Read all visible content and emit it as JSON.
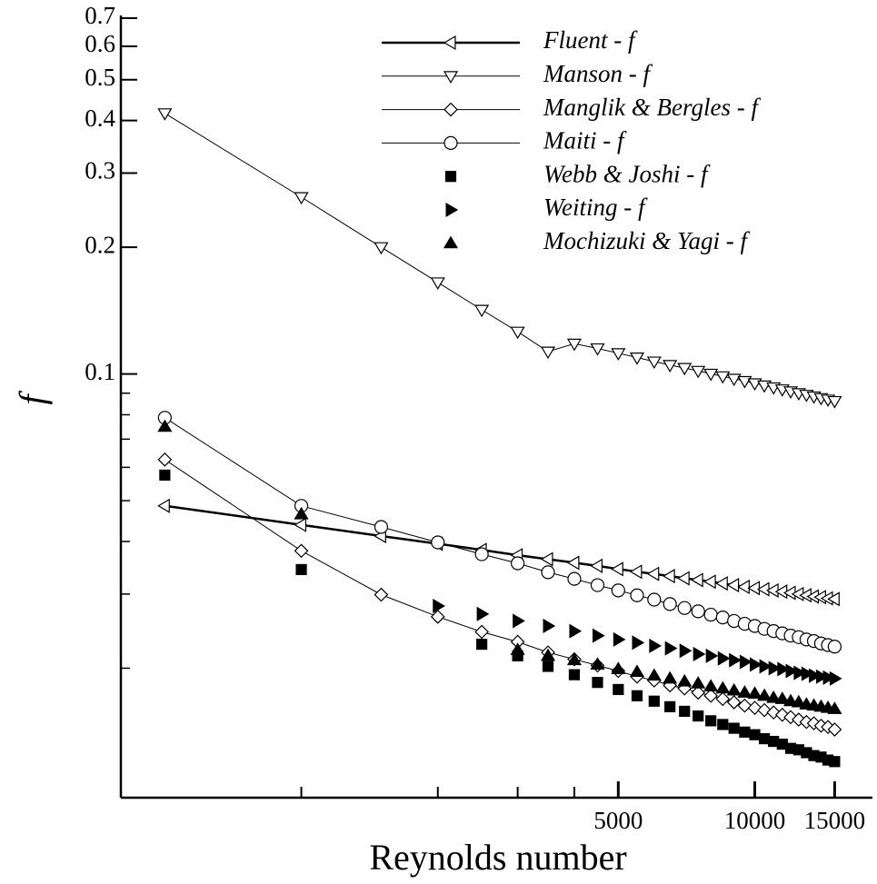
{
  "chart_data": {
    "type": "line",
    "x_scale": "log",
    "y_scale": "log",
    "xlabel": "Reynolds number",
    "ylabel": "f",
    "xlim": [
      400,
      18600
    ],
    "ylim": [
      0.00985,
      0.7
    ],
    "xticks": [
      5000,
      10000,
      15000
    ],
    "x_minor_ticks": [
      1000,
      2000,
      3000,
      4000
    ],
    "yticks": [
      0.1,
      0.2,
      0.3,
      0.4,
      0.5,
      0.6,
      0.7
    ],
    "y_minor_ticks": [
      0.02,
      0.03,
      0.04,
      0.05,
      0.06,
      0.07,
      0.08,
      0.09
    ],
    "legend": "upper right",
    "x": [
      500,
      1000,
      1500,
      2000,
      2500,
      3000,
      3500,
      4000,
      4500,
      5000,
      5500,
      6000,
      6500,
      7000,
      7500,
      8000,
      8500,
      9000,
      9500,
      10000,
      10500,
      11000,
      11500,
      12000,
      12500,
      13000,
      13500,
      14000,
      14500,
      15000
    ],
    "series": [
      {
        "name": "Fluent - f",
        "color": "#000000",
        "marker": "triangle-left",
        "line": true,
        "line_width": 2.5,
        "values": [
          0.0486,
          0.0438,
          0.0412,
          0.0395,
          0.0382,
          0.0371,
          0.0363,
          0.0356,
          0.035,
          0.0344,
          0.0339,
          0.0335,
          0.0331,
          0.0327,
          0.0324,
          0.0321,
          0.0318,
          0.0315,
          0.0312,
          0.031,
          0.0308,
          0.0306,
          0.0304,
          0.0302,
          0.03,
          0.0298,
          0.0296,
          0.0295,
          0.0293,
          0.0292
        ]
      },
      {
        "name": "Manson - f",
        "color": "#000000",
        "marker": "triangle-down",
        "line": true,
        "line_width": 1,
        "values": [
          0.416,
          0.263,
          0.2,
          0.165,
          0.142,
          0.126,
          0.113,
          0.118,
          0.115,
          0.112,
          0.1094,
          0.107,
          0.105,
          0.1033,
          0.1017,
          0.1001,
          0.0987,
          0.0974,
          0.0962,
          0.095,
          0.0939,
          0.0929,
          0.0919,
          0.0909,
          0.09,
          0.0892,
          0.0884,
          0.0876,
          0.0869,
          0.0862
        ]
      },
      {
        "name": "Manglik & Bergles - f",
        "color": "#000000",
        "marker": "diamond",
        "line": true,
        "line_width": 1,
        "values": [
          0.0626,
          0.038,
          0.0299,
          0.0265,
          0.0244,
          0.0231,
          0.0218,
          0.021,
          0.0203,
          0.0197,
          0.0191,
          0.0187,
          0.0182,
          0.0179,
          0.0175,
          0.0172,
          0.0169,
          0.0166,
          0.0163,
          0.0161,
          0.0159,
          0.0157,
          0.0155,
          0.0153,
          0.0151,
          0.0149,
          0.0148,
          0.0146,
          0.0145,
          0.0143
        ]
      },
      {
        "name": "Maiti - f",
        "color": "#000000",
        "marker": "circle",
        "line": true,
        "line_width": 1,
        "values": [
          0.0787,
          0.0486,
          0.0433,
          0.0398,
          0.0373,
          0.0355,
          0.0338,
          0.0326,
          0.0315,
          0.0306,
          0.0298,
          0.0291,
          0.0284,
          0.0278,
          0.0273,
          0.0268,
          0.0264,
          0.0259,
          0.0255,
          0.0252,
          0.0248,
          0.0245,
          0.0242,
          0.0239,
          0.0237,
          0.0234,
          0.0232,
          0.0229,
          0.0227,
          0.0225
        ]
      },
      {
        "name": "Webb & Joshi - f",
        "color": "#000000",
        "marker": "square",
        "line": false,
        "values": [
          0.0575,
          0.0343,
          null,
          null,
          0.0228,
          0.0214,
          0.0202,
          0.0193,
          0.0185,
          0.0178,
          0.0172,
          0.0167,
          0.0162,
          0.0158,
          0.0154,
          0.015,
          0.0147,
          0.0144,
          0.0141,
          0.0139,
          0.0136,
          0.0134,
          0.0132,
          0.0129,
          0.0128,
          0.0126,
          0.0124,
          0.0123,
          0.0121,
          0.012
        ]
      },
      {
        "name": "Weiting - f",
        "color": "#000000",
        "marker": "triangle-right",
        "line": false,
        "values": [
          null,
          null,
          null,
          0.0281,
          0.0269,
          0.0259,
          0.0252,
          0.0245,
          0.0239,
          0.0234,
          0.023,
          0.0226,
          0.0223,
          0.022,
          0.0216,
          0.0214,
          0.0211,
          0.0209,
          0.0207,
          0.0204,
          0.0202,
          0.02,
          0.0199,
          0.0197,
          0.0195,
          0.0194,
          0.0192,
          0.0191,
          0.019,
          0.0189
        ]
      },
      {
        "name": "Mochizuki & Yagi - f",
        "color": "#000000",
        "marker": "triangle-up",
        "line": false,
        "values": [
          0.0749,
          0.0464,
          null,
          null,
          null,
          0.0221,
          0.0214,
          0.0209,
          0.0204,
          0.0199,
          0.0196,
          0.0192,
          0.0189,
          0.0186,
          0.0184,
          0.0181,
          0.0179,
          0.0177,
          0.0175,
          0.0174,
          0.0172,
          0.017,
          0.0169,
          0.0167,
          0.0166,
          0.0164,
          0.0163,
          0.0162,
          0.0161,
          0.016
        ]
      }
    ]
  }
}
